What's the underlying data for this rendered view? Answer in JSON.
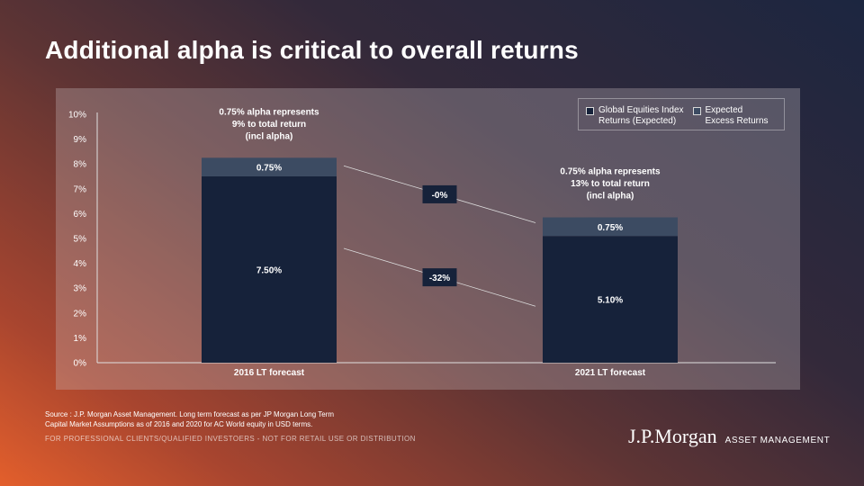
{
  "title": "Additional alpha is critical to overall returns",
  "colors": {
    "base": "#16223a",
    "excess": "#3c4b62",
    "line": "#dcdcdc",
    "text": "#ffffff"
  },
  "legend": {
    "items": [
      {
        "label": "Global Equities Index\nReturns (Expected)",
        "color": "#16223a"
      },
      {
        "label": "Expected\nExcess Returns",
        "color": "#3c4b62"
      }
    ]
  },
  "chart_data": {
    "type": "bar",
    "stacked": true,
    "categories": [
      "2016 LT forecast",
      "2021 LT forecast"
    ],
    "series": [
      {
        "name": "Global Equities Index Returns (Expected)",
        "values": [
          7.5,
          5.1
        ],
        "labels": [
          "7.50%",
          "5.10%"
        ]
      },
      {
        "name": "Expected Excess Returns",
        "values": [
          0.75,
          0.75
        ],
        "labels": [
          "0.75%",
          "0.75%"
        ]
      }
    ],
    "ylim": [
      0,
      10
    ],
    "yticks": [
      "0%",
      "1%",
      "2%",
      "3%",
      "4%",
      "5%",
      "6%",
      "7%",
      "8%",
      "9%",
      "10%"
    ],
    "grid": false,
    "legend_position": "top-right",
    "annotations": [
      {
        "category": "2016 LT forecast",
        "lines": [
          "0.75% alpha represents",
          "9% to total return",
          "(incl alpha)"
        ]
      },
      {
        "category": "2021 LT forecast",
        "lines": [
          "0.75% alpha represents",
          "13% to total return",
          "(incl alpha)"
        ]
      }
    ],
    "changes": [
      {
        "label": "-0%",
        "series": "Expected Excess Returns"
      },
      {
        "label": "-32%",
        "series": "Global Equities Index Returns (Expected)"
      }
    ]
  },
  "footer": {
    "source_line1": "Source : J.P. Morgan Asset Management. Long term forecast as per JP Morgan Long Term",
    "source_line2": "Capital Market Assumptions as of 2016 and 2020 for AC World equity in USD terms.",
    "disclaimer": "FOR PROFESSIONAL CLIENTS/QUALIFIED INVESTOERS - NOT FOR RETAIL USE OR DISTRIBUTION",
    "logo_text": "J.P.Morgan",
    "logo_subtext": "ASSET MANAGEMENT"
  }
}
